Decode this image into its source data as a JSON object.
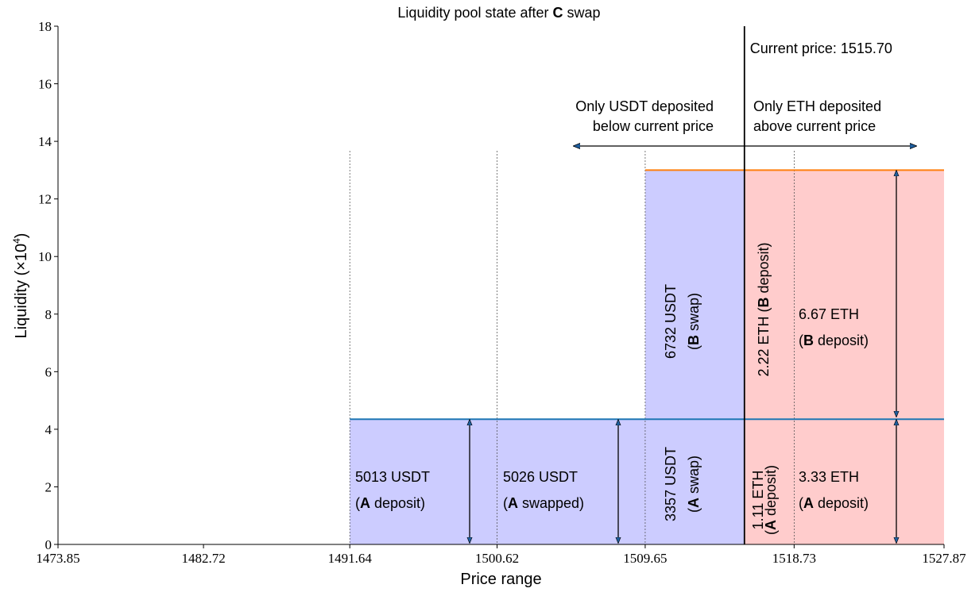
{
  "chart_data": {
    "type": "liquidity-ranges",
    "title": [
      "Liquidity pool state after ",
      "C",
      " swap"
    ],
    "xlabel": "Price range",
    "ylabel": [
      "Liquidity (×10",
      "4",
      ")"
    ],
    "xlim": [
      1473.85,
      1527.87
    ],
    "xticks": [
      1473.85,
      1482.72,
      1491.64,
      1500.62,
      1509.65,
      1518.73,
      1527.87
    ],
    "ylim": [
      0,
      18
    ],
    "yticks": [
      0,
      2,
      4,
      6,
      8,
      10,
      12,
      14,
      16,
      18
    ],
    "regions": [
      {
        "x": [
          1491.64,
          1515.7
        ],
        "y": [
          0,
          4.35
        ],
        "color": "#ccccff"
      },
      {
        "x": [
          1509.65,
          1515.7
        ],
        "y": [
          4.35,
          13
        ],
        "color": "#ccccff"
      },
      {
        "x": [
          1515.7,
          1527.87
        ],
        "y": [
          0,
          13
        ],
        "color": "#ffcccc"
      }
    ],
    "lines": [
      {
        "x": [
          1491.64,
          1527.87
        ],
        "y": 4.35,
        "color": "#1f77b4"
      },
      {
        "x": [
          1509.65,
          1527.87
        ],
        "y": 13,
        "color": "#ff7f0e"
      }
    ],
    "current_price": 1515.7,
    "current_price_label": "Current price: 1515.70",
    "annotations": [
      {
        "lines": [
          [
            "Only USDT deposited"
          ],
          [
            "below current price"
          ]
        ]
      },
      {
        "lines": [
          [
            "Only ETH deposited"
          ],
          [
            "above current price"
          ]
        ]
      },
      {
        "lines": [
          [
            "5013 USDT"
          ],
          [
            "(",
            "A",
            " deposit)"
          ]
        ]
      },
      {
        "lines": [
          [
            "5026 USDT"
          ],
          [
            "(",
            "A",
            " swapped)"
          ]
        ]
      },
      {
        "lines": [
          [
            "3357 USDT"
          ],
          [
            "(",
            "A",
            " swap)"
          ]
        ]
      },
      {
        "lines": [
          [
            "6732 USDT"
          ],
          [
            "(",
            "B",
            " swap)"
          ]
        ]
      },
      {
        "lines": [
          [
            "2.22 ETH (",
            "B",
            " deposit)"
          ]
        ]
      },
      {
        "lines": [
          [
            "1.11 ETH"
          ],
          [
            "(",
            "A",
            " deposit)"
          ]
        ]
      },
      {
        "lines": [
          [
            "6.67 ETH"
          ],
          [
            "(",
            "B",
            " deposit)"
          ]
        ]
      },
      {
        "lines": [
          [
            "3.33 ETH"
          ],
          [
            "(",
            "A",
            " deposit)"
          ]
        ]
      }
    ]
  }
}
